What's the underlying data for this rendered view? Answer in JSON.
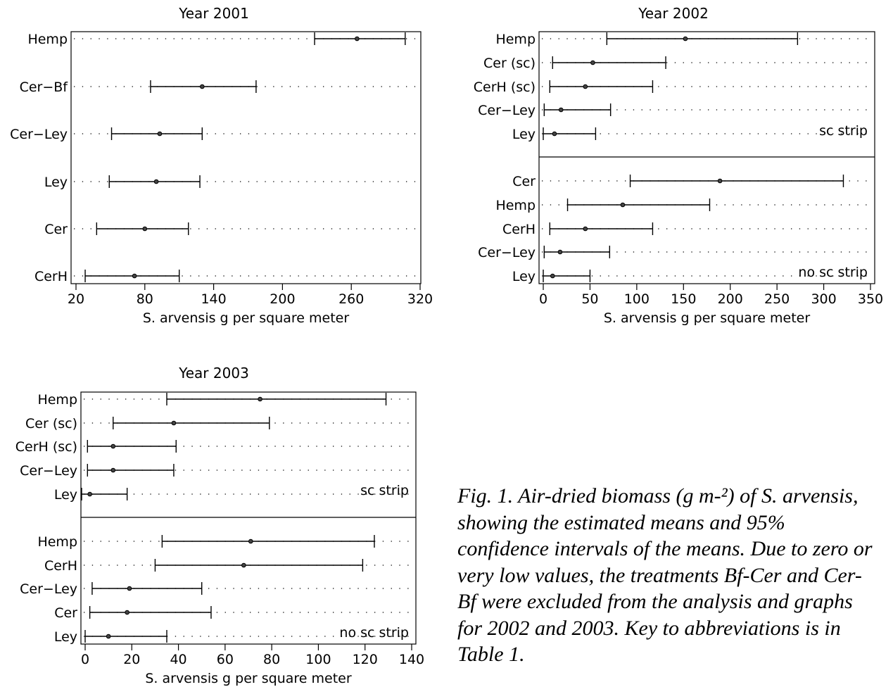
{
  "chart_data": [
    {
      "type": "errorbar",
      "title": "Year 2001",
      "xlabel": "S. arvensis g per square meter",
      "xlim": [
        20,
        320
      ],
      "xticks": [
        "20",
        "80",
        "140",
        "200",
        "260",
        "320"
      ],
      "grid": "dotted horizontal",
      "groups": [
        {
          "label": "",
          "rows": [
            {
              "name": "Hemp",
              "mean": 265,
              "lower": 228,
              "upper": 307
            },
            {
              "name": "Cer−Bf",
              "mean": 130,
              "lower": 85,
              "upper": 177
            },
            {
              "name": "Cer−Ley",
              "mean": 93,
              "lower": 51,
              "upper": 130
            },
            {
              "name": "Ley",
              "mean": 90,
              "lower": 49,
              "upper": 128
            },
            {
              "name": "Cer",
              "mean": 80,
              "lower": 38,
              "upper": 118
            },
            {
              "name": "CerH",
              "mean": 71,
              "lower": 28,
              "upper": 110
            }
          ]
        }
      ]
    },
    {
      "type": "errorbar",
      "title": "Year 2002",
      "xlabel": "S. arvensis g per square meter",
      "xlim": [
        0,
        350
      ],
      "xticks": [
        "0",
        "50",
        "100",
        "150",
        "200",
        "250",
        "300",
        "350"
      ],
      "grid": "dotted horizontal",
      "groups": [
        {
          "label": "sc strip",
          "rows": [
            {
              "name": "Hemp",
              "mean": 152,
              "lower": 68,
              "upper": 272
            },
            {
              "name": "Cer (sc)",
              "mean": 53,
              "lower": 10,
              "upper": 131
            },
            {
              "name": "CerH (sc)",
              "mean": 45,
              "lower": 7,
              "upper": 117
            },
            {
              "name": "Cer−Ley",
              "mean": 19,
              "lower": 1,
              "upper": 72
            },
            {
              "name": "Ley",
              "mean": 12,
              "lower": 0,
              "upper": 56
            }
          ]
        },
        {
          "label": "no sc strip",
          "rows": [
            {
              "name": "Cer",
              "mean": 189,
              "lower": 93,
              "upper": 321
            },
            {
              "name": "Hemp",
              "mean": 85,
              "lower": 26,
              "upper": 178
            },
            {
              "name": "CerH",
              "mean": 45,
              "lower": 7,
              "upper": 117
            },
            {
              "name": "Cer−Ley",
              "mean": 18,
              "lower": 1,
              "upper": 71
            },
            {
              "name": "Ley",
              "mean": 10,
              "lower": 0,
              "upper": 50
            }
          ]
        }
      ]
    },
    {
      "type": "errorbar",
      "title": "Year 2003",
      "xlabel": "S. arvensis g per square meter",
      "xlim": [
        0,
        140
      ],
      "xticks": [
        "0",
        "20",
        "40",
        "60",
        "80",
        "100",
        "120",
        "140"
      ],
      "grid": "dotted horizontal",
      "groups": [
        {
          "label": "sc strip",
          "rows": [
            {
              "name": "Hemp",
              "mean": 75,
              "lower": 35,
              "upper": 129
            },
            {
              "name": "Cer (sc)",
              "mean": 38,
              "lower": 12,
              "upper": 79
            },
            {
              "name": "CerH (sc)",
              "mean": 12,
              "lower": 1,
              "upper": 39
            },
            {
              "name": "Cer−Ley",
              "mean": 12,
              "lower": 1,
              "upper": 38
            },
            {
              "name": "Ley",
              "mean": 2,
              "lower": -2,
              "upper": 18
            }
          ]
        },
        {
          "label": "no sc strip",
          "rows": [
            {
              "name": "Hemp",
              "mean": 71,
              "lower": 33,
              "upper": 124
            },
            {
              "name": "CerH",
              "mean": 68,
              "lower": 30,
              "upper": 119
            },
            {
              "name": "Cer−Ley",
              "mean": 19,
              "lower": 3,
              "upper": 50
            },
            {
              "name": "Cer",
              "mean": 18,
              "lower": 2,
              "upper": 54
            },
            {
              "name": "Ley",
              "mean": 10,
              "lower": 0,
              "upper": 35
            }
          ]
        }
      ]
    }
  ],
  "caption": "Fig. 1. Air-dried biomass (g m-²) of S. arvensis, showing the estimated means and 95% confidence intervals of the means. Due to zero or very low values, the treatments Bf-Cer and Cer-Bf were excluded from the analysis and graphs for 2002 and 2003. Key to abbreviations is in Table 1."
}
